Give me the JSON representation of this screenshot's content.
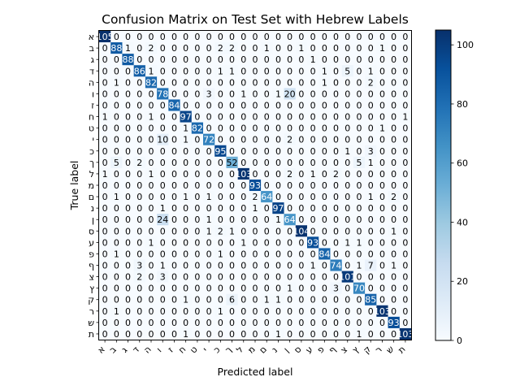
{
  "chart_data": {
    "type": "heatmap",
    "title": "Confusion Matrix on Test Set with Hebrew Labels",
    "xlabel": "Predicted label",
    "ylabel": "True label",
    "labels": [
      "א",
      "ב",
      "ג",
      "ד",
      "ה",
      "ו",
      "ז",
      "ח",
      "ט",
      "י",
      "כ",
      "ך",
      "ל",
      "מ",
      "ם",
      "נ",
      "ן",
      "ס",
      "ע",
      "פ",
      "ף",
      "צ",
      "ץ",
      "ק",
      "ר",
      "ש",
      "ת"
    ],
    "matrix": [
      [
        105,
        0,
        0,
        0,
        0,
        0,
        0,
        0,
        0,
        0,
        0,
        0,
        0,
        0,
        0,
        0,
        0,
        0,
        0,
        0,
        0,
        0,
        0,
        0,
        0,
        0,
        0
      ],
      [
        0,
        88,
        1,
        0,
        2,
        0,
        0,
        0,
        0,
        0,
        2,
        2,
        0,
        0,
        1,
        0,
        0,
        1,
        0,
        0,
        0,
        0,
        0,
        0,
        1,
        0,
        0
      ],
      [
        0,
        0,
        88,
        0,
        0,
        0,
        0,
        0,
        0,
        0,
        0,
        0,
        0,
        0,
        0,
        0,
        0,
        0,
        1,
        0,
        0,
        0,
        0,
        0,
        0,
        0,
        0
      ],
      [
        0,
        0,
        0,
        86,
        1,
        0,
        0,
        0,
        0,
        0,
        1,
        1,
        0,
        0,
        0,
        0,
        0,
        0,
        0,
        1,
        0,
        5,
        0,
        1,
        0,
        0,
        0
      ],
      [
        0,
        1,
        0,
        0,
        82,
        0,
        0,
        0,
        0,
        0,
        0,
        0,
        0,
        0,
        0,
        0,
        0,
        0,
        0,
        1,
        0,
        0,
        0,
        2,
        0,
        0,
        0
      ],
      [
        0,
        0,
        0,
        0,
        0,
        78,
        0,
        0,
        0,
        3,
        0,
        0,
        1,
        0,
        0,
        1,
        20,
        0,
        0,
        0,
        0,
        0,
        0,
        0,
        0,
        0,
        0
      ],
      [
        0,
        0,
        0,
        0,
        0,
        0,
        84,
        0,
        0,
        0,
        0,
        0,
        0,
        0,
        0,
        0,
        0,
        0,
        0,
        0,
        0,
        0,
        0,
        0,
        0,
        0,
        0
      ],
      [
        1,
        0,
        0,
        0,
        1,
        0,
        0,
        97,
        0,
        0,
        0,
        0,
        0,
        0,
        0,
        0,
        0,
        0,
        0,
        0,
        0,
        0,
        0,
        0,
        0,
        0,
        1
      ],
      [
        0,
        0,
        0,
        0,
        0,
        0,
        0,
        1,
        82,
        0,
        0,
        0,
        0,
        0,
        0,
        0,
        0,
        0,
        0,
        0,
        0,
        0,
        0,
        0,
        1,
        0,
        0
      ],
      [
        0,
        0,
        0,
        0,
        0,
        10,
        0,
        1,
        0,
        72,
        0,
        0,
        0,
        0,
        0,
        0,
        2,
        0,
        0,
        0,
        0,
        0,
        0,
        0,
        0,
        0,
        0
      ],
      [
        0,
        0,
        0,
        0,
        0,
        0,
        0,
        0,
        0,
        0,
        95,
        0,
        0,
        0,
        0,
        0,
        0,
        0,
        0,
        0,
        0,
        1,
        0,
        3,
        0,
        0,
        0
      ],
      [
        0,
        5,
        0,
        2,
        0,
        0,
        0,
        0,
        0,
        0,
        0,
        52,
        0,
        0,
        0,
        0,
        0,
        0,
        0,
        0,
        0,
        0,
        5,
        1,
        0,
        0,
        0
      ],
      [
        1,
        0,
        0,
        0,
        1,
        0,
        0,
        0,
        0,
        0,
        0,
        0,
        103,
        0,
        0,
        0,
        2,
        0,
        1,
        0,
        2,
        0,
        0,
        0,
        0,
        0,
        0
      ],
      [
        0,
        0,
        0,
        0,
        0,
        0,
        0,
        0,
        0,
        0,
        0,
        0,
        0,
        93,
        0,
        0,
        0,
        0,
        0,
        0,
        0,
        0,
        0,
        0,
        0,
        0,
        0
      ],
      [
        0,
        1,
        0,
        0,
        0,
        0,
        0,
        1,
        0,
        1,
        0,
        0,
        0,
        2,
        64,
        0,
        0,
        0,
        0,
        0,
        0,
        0,
        0,
        1,
        0,
        2,
        0
      ],
      [
        0,
        0,
        0,
        0,
        0,
        1,
        0,
        0,
        0,
        0,
        0,
        0,
        0,
        1,
        0,
        97,
        0,
        0,
        0,
        0,
        0,
        0,
        0,
        0,
        0,
        0,
        0
      ],
      [
        0,
        0,
        0,
        0,
        0,
        24,
        0,
        0,
        0,
        1,
        0,
        0,
        0,
        0,
        0,
        1,
        64,
        0,
        0,
        0,
        0,
        0,
        0,
        0,
        0,
        0,
        0
      ],
      [
        0,
        0,
        0,
        0,
        0,
        0,
        0,
        0,
        0,
        1,
        2,
        1,
        0,
        0,
        0,
        0,
        0,
        104,
        0,
        0,
        0,
        0,
        0,
        0,
        0,
        1,
        0
      ],
      [
        0,
        0,
        0,
        0,
        1,
        0,
        0,
        0,
        0,
        0,
        0,
        0,
        1,
        0,
        0,
        0,
        0,
        0,
        93,
        0,
        0,
        1,
        1,
        0,
        0,
        0,
        0
      ],
      [
        0,
        1,
        0,
        0,
        0,
        0,
        0,
        0,
        0,
        0,
        1,
        0,
        0,
        0,
        0,
        0,
        0,
        0,
        0,
        84,
        0,
        0,
        0,
        0,
        0,
        0,
        0
      ],
      [
        0,
        0,
        0,
        3,
        0,
        1,
        0,
        0,
        0,
        0,
        0,
        0,
        0,
        0,
        0,
        0,
        0,
        0,
        1,
        0,
        74,
        0,
        1,
        7,
        0,
        1,
        0
      ],
      [
        0,
        0,
        0,
        2,
        0,
        3,
        0,
        0,
        0,
        0,
        0,
        0,
        0,
        0,
        0,
        0,
        0,
        0,
        0,
        0,
        0,
        101,
        0,
        0,
        0,
        0,
        0
      ],
      [
        0,
        0,
        0,
        0,
        0,
        0,
        0,
        0,
        0,
        0,
        0,
        0,
        0,
        0,
        0,
        0,
        1,
        0,
        0,
        0,
        3,
        0,
        70,
        0,
        0,
        0,
        0
      ],
      [
        0,
        0,
        0,
        0,
        0,
        0,
        0,
        1,
        0,
        0,
        0,
        6,
        0,
        0,
        1,
        1,
        0,
        0,
        0,
        0,
        0,
        0,
        0,
        85,
        0,
        0,
        0
      ],
      [
        0,
        1,
        0,
        0,
        0,
        0,
        0,
        0,
        0,
        0,
        1,
        0,
        0,
        0,
        0,
        0,
        0,
        0,
        0,
        0,
        0,
        0,
        0,
        0,
        103,
        0,
        0
      ],
      [
        0,
        0,
        0,
        0,
        0,
        0,
        0,
        0,
        0,
        0,
        0,
        0,
        0,
        0,
        0,
        0,
        0,
        0,
        0,
        0,
        0,
        0,
        0,
        0,
        0,
        93,
        0
      ],
      [
        0,
        0,
        0,
        0,
        0,
        0,
        0,
        1,
        0,
        0,
        0,
        0,
        0,
        0,
        0,
        1,
        0,
        0,
        0,
        0,
        0,
        0,
        1,
        0,
        0,
        0,
        103
      ]
    ],
    "colorbar": {
      "cmap": "Blues",
      "range": [
        0,
        105
      ],
      "ticks": [
        0,
        20,
        40,
        60,
        80,
        100
      ]
    }
  }
}
